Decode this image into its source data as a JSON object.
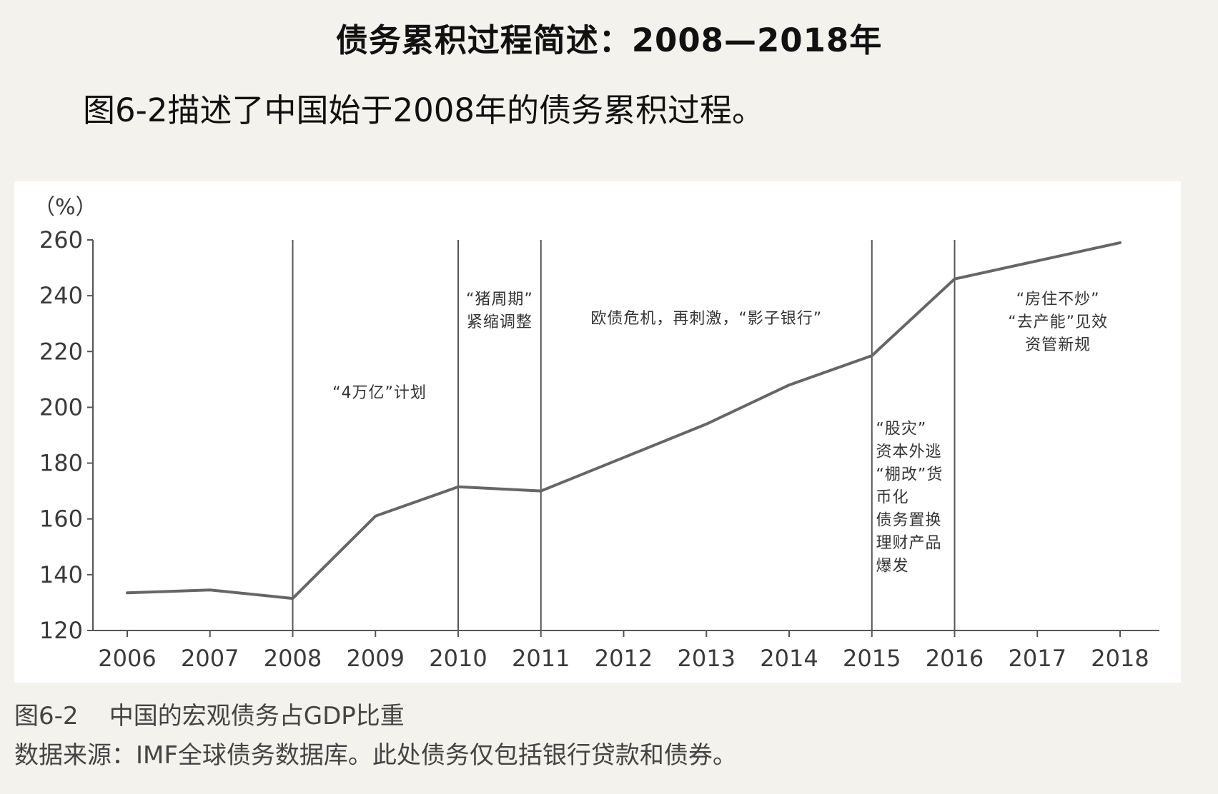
{
  "page": {
    "heading": "债务累积过程简述：2008—2018年",
    "intro": "图6-2描述了中国始于2008年的债务累积过程。",
    "caption": "图6-2    中国的宏观债务占GDP比重",
    "source": "数据来源：IMF全球债务数据库。此处债务仅包括银行贷款和债券。"
  },
  "chart_data": {
    "type": "line",
    "y_unit_label": "（%）",
    "x": [
      2006,
      2007,
      2008,
      2009,
      2010,
      2011,
      2012,
      2013,
      2014,
      2015,
      2016,
      2017,
      2018
    ],
    "x_tick_labels": [
      "2006",
      "2007",
      "2008",
      "2009",
      "2010",
      "2011",
      "2012",
      "2013",
      "2014",
      "2015",
      "2016",
      "2017",
      "2018"
    ],
    "series": [
      {
        "values": [
          133.5,
          134.5,
          131.5,
          161,
          171.5,
          170,
          182,
          194,
          208,
          218.5,
          246,
          252.5,
          259
        ]
      }
    ],
    "ylim": [
      120,
      260
    ],
    "y_ticks": [
      120,
      140,
      160,
      180,
      200,
      220,
      240,
      260
    ],
    "y_tick_labels": [
      "120",
      "140",
      "160",
      "180",
      "200",
      "220",
      "240",
      "260"
    ],
    "vertical_lines_at": [
      2008,
      2010,
      2011,
      2015,
      2016
    ],
    "annotations": [
      {
        "lines": [
          "“4万亿”计划"
        ],
        "x": 2009.05,
        "y": 203.5,
        "align": "middle"
      },
      {
        "lines": [
          "“猪周期”",
          "紧缩调整"
        ],
        "x": 2010.5,
        "y": 237,
        "align": "middle"
      },
      {
        "lines": [
          "欧债危机，再刺激，“影子银行”"
        ],
        "x": 2013.0,
        "y": 230,
        "align": "middle"
      },
      {
        "lines": [
          "“股灾”",
          "资本外逃",
          "“棚改”货",
          "币化",
          "债务置换",
          "理财产品",
          "爆发"
        ],
        "x": 2015.05,
        "y": 190.5,
        "align": "start"
      },
      {
        "lines": [
          "“房住不炒”",
          "“去产能”见效",
          "资管新规"
        ],
        "x": 2017.25,
        "y": 237,
        "align": "middle"
      }
    ],
    "grid": false,
    "colors": {
      "line": "#666666",
      "axis": "#555555",
      "vline": "#555555"
    }
  }
}
